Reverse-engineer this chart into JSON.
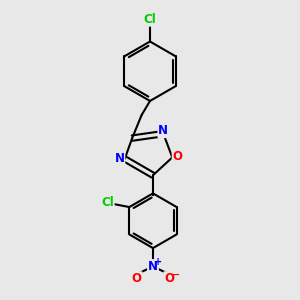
{
  "background_color": "#e8e8e8",
  "bond_color": "#000000",
  "bond_width": 1.5,
  "atom_colors": {
    "Cl": "#00cc00",
    "N": "#0000ff",
    "O": "#ff0000"
  },
  "font_size": 8.5,
  "figsize": [
    3.0,
    3.0
  ],
  "dpi": 100,
  "xlim": [
    0,
    10
  ],
  "ylim": [
    0,
    10
  ]
}
